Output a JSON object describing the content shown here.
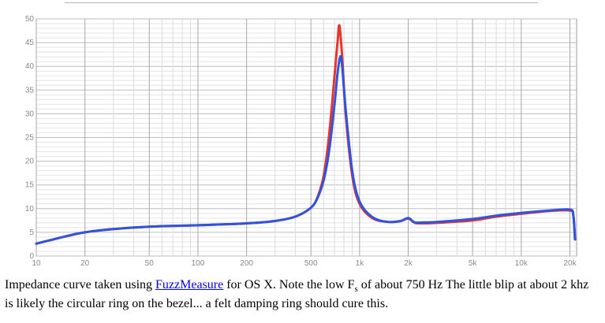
{
  "chart_data": {
    "type": "line",
    "x_scale": "log",
    "xlim": [
      10,
      22000
    ],
    "ylim": [
      0,
      50
    ],
    "x_ticks": [
      10,
      20,
      50,
      100,
      200,
      500,
      1000,
      2000,
      5000,
      10000,
      20000
    ],
    "x_tick_labels": [
      "10",
      "20",
      "50",
      "100",
      "200",
      "500",
      "1k",
      "2k",
      "5k",
      "10k",
      "20k"
    ],
    "y_ticks": [
      0,
      5,
      10,
      15,
      20,
      25,
      30,
      35,
      40,
      45,
      50
    ],
    "y_tick_labels": [
      "0",
      "5",
      "10",
      "15",
      "20",
      "25",
      "30",
      "35",
      "40",
      "45",
      "50"
    ],
    "grid": true,
    "series": [
      {
        "color": "#e8342c",
        "x": [
          10,
          15,
          20,
          30,
          50,
          100,
          200,
          300,
          400,
          500,
          550,
          600,
          650,
          700,
          730,
          750,
          780,
          820,
          900,
          1000,
          1200,
          1500,
          1800,
          2000,
          2200,
          2500,
          3000,
          5000,
          7000,
          10000,
          15000,
          20000,
          21000,
          21500
        ],
        "y": [
          2.6,
          4.1,
          5.0,
          5.7,
          6.2,
          6.5,
          6.9,
          7.4,
          8.3,
          10.2,
          12.5,
          17.0,
          26.0,
          38.0,
          45.0,
          48.6,
          42.0,
          30.0,
          17.0,
          11.0,
          8.0,
          7.2,
          7.4,
          7.9,
          7.0,
          6.9,
          7.0,
          7.5,
          8.3,
          8.9,
          9.5,
          9.6,
          8.5,
          3.5
        ]
      },
      {
        "color": "#2e54e0",
        "x": [
          10,
          15,
          20,
          30,
          50,
          100,
          200,
          300,
          400,
          500,
          550,
          600,
          650,
          700,
          730,
          760,
          780,
          820,
          900,
          1000,
          1200,
          1500,
          1800,
          2000,
          2200,
          2500,
          3000,
          5000,
          7000,
          10000,
          15000,
          20000,
          21000,
          21500
        ],
        "y": [
          2.6,
          4.1,
          5.0,
          5.7,
          6.2,
          6.5,
          6.9,
          7.4,
          8.3,
          10.2,
          12.3,
          16.0,
          22.5,
          32.0,
          38.5,
          42.1,
          40.0,
          31.0,
          18.0,
          11.5,
          8.2,
          7.2,
          7.4,
          8.0,
          7.1,
          7.1,
          7.2,
          7.8,
          8.5,
          9.1,
          9.6,
          9.8,
          8.5,
          3.5
        ]
      }
    ]
  },
  "caption": {
    "part1": "Impedance curve taken using ",
    "link": "FuzzMeasure",
    "part2": " for OS X. Note the low F",
    "sub": "s",
    "part3": " of about 750 Hz The little blip at about 2 khz is likely the circular ring on the bezel... a felt damping ring should cure this."
  }
}
